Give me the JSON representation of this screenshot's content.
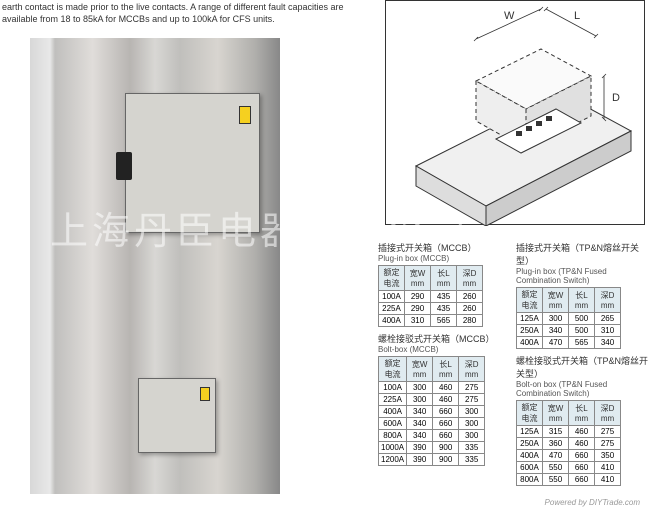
{
  "intro": "earth contact is made prior to the live contacts. A range of different fault capacities are available from 18 to 85kA for MCCBs and up to 100kA for CFS units.",
  "watermark": "上海丹臣电器有限公司",
  "labels": {
    "W": "W",
    "L": "L",
    "D": "D"
  },
  "tables": {
    "t1": {
      "title_cn": "插接式开关箱（MCCB）",
      "title_en": "Plug-in box (MCCB)",
      "headers": [
        "额定\n电流",
        "宽W\nmm",
        "长L\nmm",
        "深D\nmm"
      ],
      "rows": [
        [
          "100A",
          "290",
          "435",
          "260"
        ],
        [
          "225A",
          "290",
          "435",
          "260"
        ],
        [
          "400A",
          "310",
          "565",
          "280"
        ]
      ]
    },
    "t2": {
      "title_cn": "插接式开关箱（TP&N熔丝开关型）",
      "title_en": "Plug-in box (TP&N Fused Combination Switch)",
      "headers": [
        "额定\n电流",
        "宽W\nmm",
        "长L\nmm",
        "深D\nmm"
      ],
      "rows": [
        [
          "125A",
          "300",
          "500",
          "265"
        ],
        [
          "250A",
          "340",
          "500",
          "310"
        ],
        [
          "400A",
          "470",
          "565",
          "340"
        ]
      ]
    },
    "t3": {
      "title_cn": "螺栓接驳式开关箱（MCCB）",
      "title_en": "Bolt-box (MCCB)",
      "headers": [
        "额定\n电流",
        "宽W\nmm",
        "长L\nmm",
        "深D\nmm"
      ],
      "rows": [
        [
          "100A",
          "300",
          "460",
          "275"
        ],
        [
          "225A",
          "300",
          "460",
          "275"
        ],
        [
          "400A",
          "340",
          "660",
          "300"
        ],
        [
          "600A",
          "340",
          "660",
          "300"
        ],
        [
          "800A",
          "340",
          "660",
          "300"
        ],
        [
          "1000A",
          "390",
          "900",
          "335"
        ],
        [
          "1200A",
          "390",
          "900",
          "335"
        ]
      ]
    },
    "t4": {
      "title_cn": "螺栓接驳式开关箱（TP&N熔丝开关型）",
      "title_en": "Bolt-on box (TP&N Fused Combination Switch)",
      "headers": [
        "额定\n电流",
        "宽W\nmm",
        "长L\nmm",
        "深D\nmm"
      ],
      "rows": [
        [
          "125A",
          "315",
          "460",
          "275"
        ],
        [
          "250A",
          "360",
          "460",
          "275"
        ],
        [
          "400A",
          "470",
          "660",
          "350"
        ],
        [
          "600A",
          "550",
          "660",
          "410"
        ],
        [
          "800A",
          "550",
          "660",
          "410"
        ]
      ]
    }
  },
  "footer": "Powered by DIYTrade.com"
}
